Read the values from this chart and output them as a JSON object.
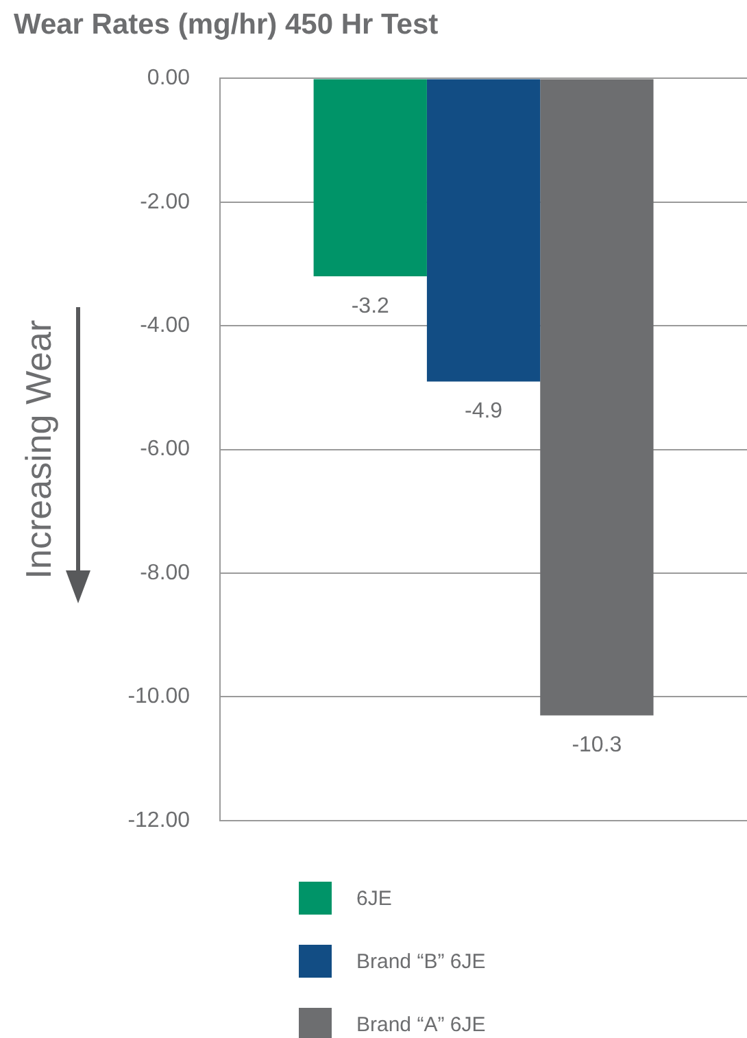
{
  "chart_data": {
    "type": "bar",
    "title": "Wear Rates (mg/hr) 450 Hr Test",
    "ylabel": "Increasing Wear",
    "categories": [
      null
    ],
    "series": [
      {
        "name": "6JE",
        "color": "#009468",
        "values": [
          -3.2
        ]
      },
      {
        "name": "Brand “B” 6JE",
        "color": "#124d84",
        "values": [
          -4.9
        ]
      },
      {
        "name": "Brand “A” 6JE",
        "color": "#6d6e70",
        "values": [
          -10.3
        ]
      }
    ],
    "ylim": [
      -12,
      0
    ],
    "yticks": [
      {
        "value": 0,
        "label": "0.00"
      },
      {
        "value": -2,
        "label": "-2.00"
      },
      {
        "value": -4,
        "label": "-4.00"
      },
      {
        "value": -6,
        "label": "-6.00"
      },
      {
        "value": -8,
        "label": "-8.00"
      },
      {
        "value": -10,
        "label": "-10.00"
      },
      {
        "value": -12,
        "label": "-12.00"
      }
    ],
    "grid": "y",
    "legend": "bottom",
    "data_labels": true
  }
}
